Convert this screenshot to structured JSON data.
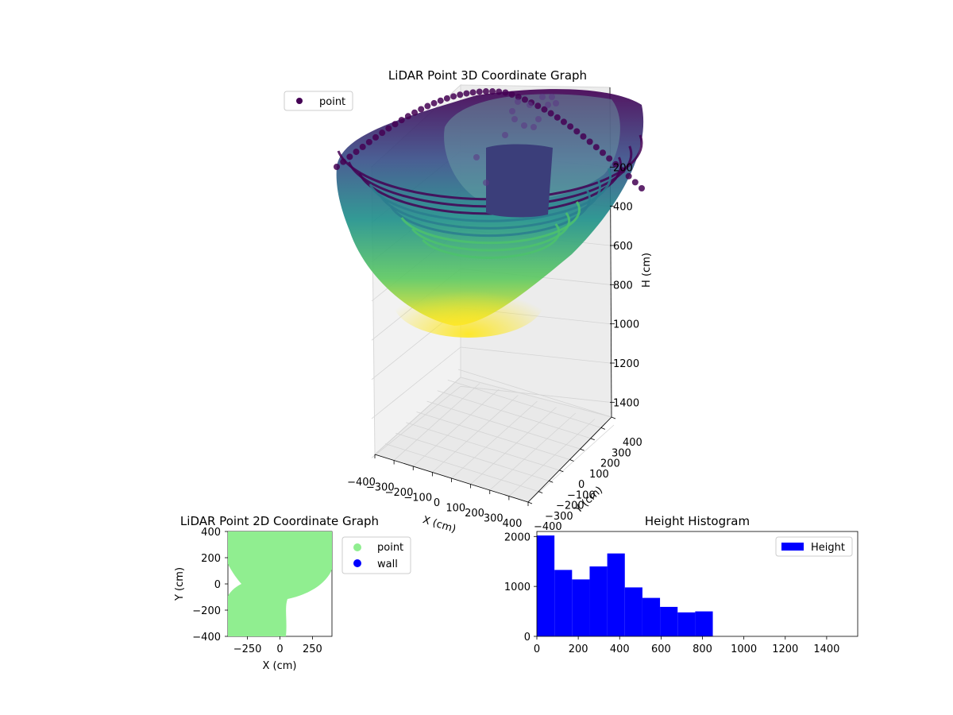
{
  "colors": {
    "viridis_low": "#440154",
    "viridis_mid": "#21918c",
    "viridis_high": "#fde725",
    "point_2d": "#90ee90",
    "wall": "#0000ff",
    "histogram": "#0000ff",
    "pane": "#f2f2f2",
    "grid": "#d4d4d4"
  },
  "chart_data": [
    {
      "type": "scatter",
      "projection": "3d",
      "title": "LiDAR Point 3D Coordinate Graph",
      "xlabel": "X (cm)",
      "ylabel": "Y (cm)",
      "zlabel": "H (cm)",
      "xlim": [
        -400,
        400
      ],
      "ylim": [
        -400,
        400
      ],
      "zlim": [
        0,
        1500
      ],
      "z_inverted": true,
      "x_ticks": [
        "−400",
        "−300",
        "−200",
        "−100",
        "0",
        "100",
        "200",
        "300",
        "400"
      ],
      "y_ticks": [
        "−400",
        "−300",
        "−200",
        "−100",
        "0",
        "100",
        "200",
        "300",
        "400"
      ],
      "z_ticks": [
        "200",
        "400",
        "600",
        "800",
        "1000",
        "1200",
        "1400"
      ],
      "z_tick_values": [
        200,
        400,
        600,
        800,
        1000,
        1200,
        1400
      ],
      "colormap": "viridis",
      "grid": true,
      "legend": {
        "placement": "upper-left",
        "entries": [
          "point"
        ]
      },
      "series": [
        {
          "name": "point"
        }
      ]
    },
    {
      "type": "scatter",
      "title": "LiDAR Point 2D Coordinate Graph",
      "xlabel": "X (cm)",
      "ylabel": "Y (cm)",
      "xlim": [
        -400,
        400
      ],
      "ylim": [
        -400,
        400
      ],
      "x_ticks": [
        "−250",
        "0",
        "250"
      ],
      "x_tick_values": [
        -250,
        0,
        250
      ],
      "y_ticks": [
        "−400",
        "−200",
        "0",
        "200",
        "400"
      ],
      "y_tick_values": [
        -400,
        -200,
        0,
        200,
        400
      ],
      "legend": {
        "placement": "outside-right",
        "entries": [
          "point",
          "wall"
        ]
      },
      "series": [
        {
          "name": "point"
        },
        {
          "name": "wall"
        }
      ]
    },
    {
      "type": "bar",
      "title": "Height Histogram",
      "xlabel": "",
      "ylabel": "",
      "xlim": [
        0,
        1550
      ],
      "ylim": [
        0,
        2100
      ],
      "x_ticks": [
        "0",
        "200",
        "400",
        "600",
        "800",
        "1000",
        "1200",
        "1400"
      ],
      "x_tick_values": [
        0,
        200,
        400,
        600,
        800,
        1000,
        1200,
        1400
      ],
      "y_ticks": [
        "0",
        "1000",
        "2000"
      ],
      "y_tick_values": [
        0,
        1000,
        2000
      ],
      "bin_edges": [
        0,
        85,
        170,
        255,
        340,
        425,
        510,
        595,
        680,
        765,
        850
      ],
      "values": [
        2020,
        1330,
        1140,
        1400,
        1660,
        980,
        770,
        590,
        480,
        500
      ],
      "legend": {
        "placement": "top-right",
        "entries": [
          "Height"
        ]
      },
      "series": [
        {
          "name": "Height"
        }
      ]
    }
  ]
}
